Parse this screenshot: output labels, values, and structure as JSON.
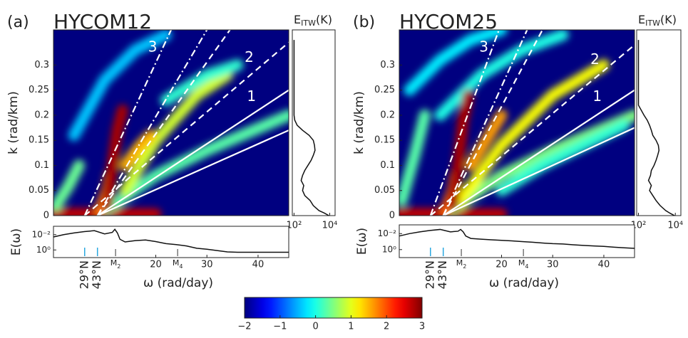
{
  "chart_data": [
    {
      "type": "heatmap",
      "panel_label": "(a)",
      "title": "HYCOM12",
      "ylabel": "k (rad/km)",
      "xlim": [
        0,
        46
      ],
      "ylim": [
        0,
        0.37
      ],
      "yticks": [
        0,
        0.05,
        0.1,
        0.15,
        0.2,
        0.25,
        0.3
      ],
      "ridges": [
        {
          "x": [
            0,
            8,
            20
          ],
          "y": [
            0.004,
            0.004,
            0.003
          ],
          "value": 2.7
        },
        {
          "x": [
            0.5,
            3,
            5
          ],
          "y": [
            0.02,
            0.06,
            0.1
          ],
          "value": 0.4
        },
        {
          "x": [
            4,
            10,
            16,
            22
          ],
          "y": [
            0.16,
            0.27,
            0.33,
            0.36
          ],
          "value": -0.4
        },
        {
          "x": [
            10,
            20,
            30,
            46
          ],
          "y": [
            0.01,
            0.08,
            0.13,
            0.2
          ],
          "value": 0.3
        },
        {
          "x": [
            14,
            20,
            28,
            34
          ],
          "y": [
            0.05,
            0.15,
            0.24,
            0.28
          ],
          "value": 0.9
        },
        {
          "x": [
            22,
            30,
            36
          ],
          "y": [
            0.23,
            0.28,
            0.3
          ],
          "value": 0.1
        },
        {
          "x": [
            14,
            17,
            19
          ],
          "y": [
            0.1,
            0.14,
            0.16
          ],
          "value": 1.5
        },
        {
          "x": [
            9,
            10.5,
            11
          ],
          "y": [
            0.01,
            0.05,
            0.08
          ],
          "value": 1.8
        },
        {
          "x": [
            10.5,
            11.5,
            12.5,
            13.5
          ],
          "y": [
            0.02,
            0.1,
            0.17,
            0.21
          ],
          "value": 2.8
        }
      ],
      "mode_lines": [
        {
          "x": [
            8.6,
            46
          ],
          "y": [
            0,
            0.25
          ],
          "style": "solid",
          "label": "1"
        },
        {
          "x": [
            8.6,
            46
          ],
          "y": [
            0,
            0.17
          ],
          "style": "solid"
        },
        {
          "x": [
            6.1,
            46
          ],
          "y": [
            0,
            0.345
          ],
          "style": "dashed",
          "label": "2"
        },
        {
          "x": [
            8.6,
            34.5
          ],
          "y": [
            0,
            0.37
          ],
          "style": "dashed"
        },
        {
          "x": [
            6.1,
            23
          ],
          "y": [
            0,
            0.37
          ],
          "style": "dashdot",
          "label": "3"
        },
        {
          "x": [
            8.6,
            30
          ],
          "y": [
            0,
            0.37
          ],
          "style": "dashdot"
        }
      ]
    },
    {
      "type": "profile",
      "title": {
        "main": "E",
        "sub": "ITW",
        "tail": "(K)"
      },
      "xlog": true,
      "xlim": [
        80,
        20000
      ],
      "xticks": [
        {
          "value": 100,
          "label": "10²"
        },
        {
          "value": 10000,
          "label": "10⁴"
        }
      ],
      "ylim": [
        0,
        0.37
      ],
      "k": [
        0,
        0.005,
        0.01,
        0.02,
        0.03,
        0.04,
        0.05,
        0.06,
        0.07,
        0.08,
        0.09,
        0.1,
        0.11,
        0.12,
        0.13,
        0.14,
        0.15,
        0.16,
        0.17,
        0.18,
        0.19,
        0.2,
        0.22,
        0.25,
        0.3,
        0.35
      ],
      "values": [
        9000,
        5000,
        2500,
        1200,
        800,
        400,
        300,
        350,
        250,
        300,
        400,
        600,
        900,
        1200,
        1500,
        1400,
        1200,
        700,
        300,
        150,
        110,
        100,
        100,
        100,
        100,
        100
      ],
      "color": "#111"
    },
    {
      "type": "spectrum",
      "ylabel": "E(ω)",
      "xlabel": "ω (rad/day)",
      "ylog": true,
      "xlim": [
        0,
        46
      ],
      "xticks": [
        20,
        30,
        40
      ],
      "ylim": [
        10,
        0.0008
      ],
      "yticks": [
        {
          "value": 0.01,
          "label": "10⁻²"
        },
        {
          "value": 1,
          "label": "10⁰"
        }
      ],
      "x": [
        0,
        2,
        4,
        6,
        8,
        10,
        11.5,
        12,
        12.5,
        13,
        14,
        16,
        18,
        20,
        22,
        24,
        26,
        28,
        30,
        32,
        34,
        36,
        38,
        40,
        42,
        44,
        46
      ],
      "values": [
        0.02,
        0.01,
        0.006,
        0.004,
        0.003,
        0.008,
        0.005,
        0.002,
        0.006,
        0.04,
        0.09,
        0.06,
        0.05,
        0.08,
        0.15,
        0.2,
        0.3,
        0.6,
        0.8,
        1.2,
        1.8,
        2,
        2,
        2,
        2,
        2,
        2
      ],
      "color": "#111",
      "markers": [
        {
          "label": "29°N",
          "x": 6.1,
          "color": "#2aa8e0"
        },
        {
          "label": "43°N",
          "x": 8.6,
          "color": "#2aa8e0"
        }
      ],
      "tides": [
        {
          "text": "M",
          "sub": "2",
          "x": 12.14,
          "color": "#777"
        },
        {
          "text": "M",
          "sub": "4",
          "x": 24.28,
          "color": "#777"
        }
      ]
    },
    {
      "type": "heatmap",
      "panel_label": "(b)",
      "title": "HYCOM25",
      "ylabel": "k (rad/km)",
      "xlim": [
        0,
        46
      ],
      "ylim": [
        0,
        0.37
      ],
      "yticks": [
        0,
        0.05,
        0.1,
        0.15,
        0.2,
        0.25,
        0.3
      ],
      "ridges": [
        {
          "x": [
            0,
            8,
            20
          ],
          "y": [
            0.004,
            0.004,
            0.003
          ],
          "value": 2.7
        },
        {
          "x": [
            0.5,
            3,
            5
          ],
          "y": [
            0.03,
            0.12,
            0.2
          ],
          "value": 0.3
        },
        {
          "x": [
            2,
            8,
            14,
            20
          ],
          "y": [
            0.25,
            0.31,
            0.35,
            0.37
          ],
          "value": -0.2
        },
        {
          "x": [
            8,
            16,
            24,
            32
          ],
          "y": [
            0.2,
            0.28,
            0.33,
            0.36
          ],
          "value": 0
        },
        {
          "x": [
            10,
            20,
            30,
            46
          ],
          "y": [
            0.01,
            0.08,
            0.13,
            0.2
          ],
          "value": 0.5
        },
        {
          "x": [
            12,
            20,
            30,
            40
          ],
          "y": [
            0.03,
            0.14,
            0.24,
            0.3
          ],
          "value": 1.1
        },
        {
          "x": [
            20,
            28,
            36,
            44
          ],
          "y": [
            0.05,
            0.1,
            0.14,
            0.18
          ],
          "value": 0.1
        },
        {
          "x": [
            14,
            17,
            20
          ],
          "y": [
            0.1,
            0.15,
            0.2
          ],
          "value": 1.6
        },
        {
          "x": [
            9,
            10.5,
            11
          ],
          "y": [
            0.01,
            0.05,
            0.08
          ],
          "value": 1.9
        },
        {
          "x": [
            10.5,
            11.5,
            12.5,
            13.5
          ],
          "y": [
            0.02,
            0.1,
            0.19,
            0.24
          ],
          "value": 2.8
        }
      ],
      "mode_lines": [
        {
          "x": [
            8.6,
            46
          ],
          "y": [
            0,
            0.25
          ],
          "style": "solid",
          "label": "1"
        },
        {
          "x": [
            8.6,
            46
          ],
          "y": [
            0,
            0.175
          ],
          "style": "solid"
        },
        {
          "x": [
            6.1,
            46
          ],
          "y": [
            0,
            0.34
          ],
          "style": "dashed",
          "label": "2"
        },
        {
          "x": [
            8.6,
            28
          ],
          "y": [
            0,
            0.37
          ],
          "style": "dashed"
        },
        {
          "x": [
            6.1,
            19.5
          ],
          "y": [
            0,
            0.37
          ],
          "style": "dashdot",
          "label": "3"
        },
        {
          "x": [
            8.6,
            25
          ],
          "y": [
            0,
            0.37
          ],
          "style": "dashdot"
        }
      ]
    },
    {
      "type": "profile",
      "title": {
        "main": "E",
        "sub": "ITW",
        "tail": "(K)"
      },
      "xlog": true,
      "xlim": [
        80,
        20000
      ],
      "xticks": [
        {
          "value": 100,
          "label": "10²"
        },
        {
          "value": 10000,
          "label": "10⁴"
        }
      ],
      "ylim": [
        0,
        0.37
      ],
      "k": [
        0,
        0.005,
        0.01,
        0.02,
        0.03,
        0.04,
        0.05,
        0.06,
        0.07,
        0.08,
        0.09,
        0.1,
        0.11,
        0.12,
        0.13,
        0.14,
        0.15,
        0.16,
        0.17,
        0.18,
        0.19,
        0.2,
        0.22,
        0.25,
        0.3,
        0.35
      ],
      "values": [
        9000,
        5000,
        3000,
        1500,
        900,
        600,
        400,
        500,
        350,
        450,
        500,
        700,
        900,
        1100,
        1300,
        1200,
        900,
        600,
        500,
        400,
        300,
        200,
        100,
        100,
        100,
        100
      ],
      "color": "#111"
    },
    {
      "type": "spectrum",
      "ylabel": "E(ω)",
      "xlabel": "ω (rad/day)",
      "ylog": true,
      "xlim": [
        0,
        46
      ],
      "xticks": [
        20,
        30,
        40
      ],
      "ylim": [
        10,
        0.0008
      ],
      "yticks": [
        {
          "value": 0.01,
          "label": "10⁻²"
        },
        {
          "value": 1,
          "label": "10⁰"
        }
      ],
      "x": [
        0,
        2,
        4,
        6,
        8,
        10,
        11.5,
        12,
        12.5,
        13,
        14,
        16,
        18,
        20,
        22,
        24,
        26,
        28,
        30,
        32,
        34,
        36,
        38,
        40,
        42,
        44,
        46
      ],
      "values": [
        0.02,
        0.01,
        0.006,
        0.004,
        0.003,
        0.006,
        0.005,
        0.003,
        0.006,
        0.02,
        0.04,
        0.05,
        0.06,
        0.07,
        0.08,
        0.1,
        0.12,
        0.15,
        0.18,
        0.2,
        0.25,
        0.3,
        0.35,
        0.4,
        0.5,
        0.6,
        0.7
      ],
      "color": "#111",
      "markers": [
        {
          "label": "29°N",
          "x": 6.1,
          "color": "#2aa8e0"
        },
        {
          "label": "43°N",
          "x": 8.6,
          "color": "#2aa8e0"
        }
      ],
      "tides": [
        {
          "text": "M",
          "sub": "2",
          "x": 12.14,
          "color": "#777"
        },
        {
          "text": "M",
          "sub": "4",
          "x": 24.28,
          "color": "#777"
        }
      ]
    },
    {
      "type": "colorbar",
      "colormap": "jet",
      "xlim": [
        -2,
        3
      ],
      "xticks": [
        {
          "value": -2,
          "label": "−2"
        },
        {
          "value": -1,
          "label": "−1"
        },
        0,
        1,
        2,
        3
      ]
    }
  ]
}
